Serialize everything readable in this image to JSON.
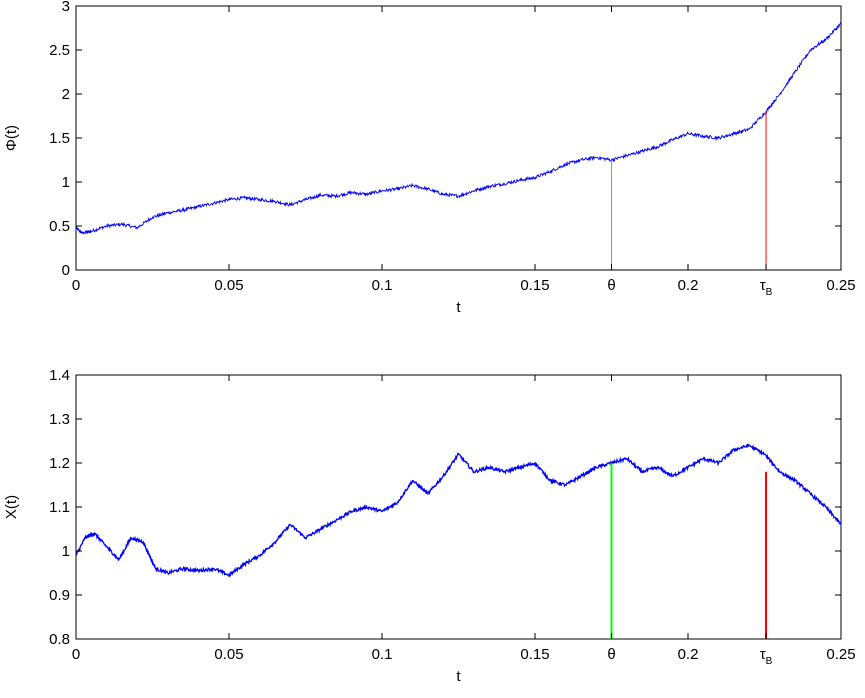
{
  "chart_data": [
    {
      "type": "line",
      "title": "",
      "xlabel": "t",
      "ylabel": "Φ(t)",
      "xlim": [
        0,
        0.25
      ],
      "ylim": [
        0,
        3
      ],
      "xticks": [
        0,
        0.05,
        0.1,
        0.15,
        0.2,
        0.25
      ],
      "xtick_labels": [
        "0",
        "0.05",
        "0.1",
        "0.15",
        "0.2",
        "0.25"
      ],
      "yticks": [
        0,
        0.5,
        1,
        1.5,
        2,
        2.5,
        3
      ],
      "ytick_labels": [
        "0",
        "0.5",
        "1",
        "1.5",
        "2",
        "2.5",
        "3"
      ],
      "special_xticks": [
        {
          "x": 0.175,
          "label": "θ"
        },
        {
          "x": 0.2255,
          "label": "τ",
          "subscript": "B"
        }
      ],
      "grid": false,
      "series": [
        {
          "color": "#0000ff",
          "x": [
            0,
            0.002,
            0.005,
            0.01,
            0.015,
            0.02,
            0.025,
            0.03,
            0.035,
            0.04,
            0.045,
            0.05,
            0.055,
            0.06,
            0.065,
            0.07,
            0.075,
            0.08,
            0.085,
            0.09,
            0.095,
            0.1,
            0.105,
            0.11,
            0.115,
            0.12,
            0.125,
            0.13,
            0.135,
            0.14,
            0.145,
            0.15,
            0.155,
            0.16,
            0.165,
            0.17,
            0.175,
            0.18,
            0.185,
            0.19,
            0.195,
            0.2,
            0.205,
            0.21,
            0.215,
            0.22,
            0.2255,
            0.23,
            0.235,
            0.24,
            0.245,
            0.25
          ],
          "y": [
            0.48,
            0.42,
            0.44,
            0.5,
            0.52,
            0.48,
            0.6,
            0.65,
            0.68,
            0.72,
            0.76,
            0.8,
            0.82,
            0.8,
            0.78,
            0.74,
            0.8,
            0.85,
            0.84,
            0.88,
            0.86,
            0.9,
            0.92,
            0.96,
            0.92,
            0.86,
            0.84,
            0.9,
            0.95,
            0.98,
            1.02,
            1.05,
            1.12,
            1.2,
            1.25,
            1.28,
            1.25,
            1.3,
            1.35,
            1.4,
            1.48,
            1.55,
            1.52,
            1.5,
            1.55,
            1.6,
            1.8,
            2.0,
            2.25,
            2.5,
            2.62,
            2.8
          ]
        }
      ],
      "markers": [
        {
          "x": 0.175,
          "y": 1.25,
          "color": "#00ff00"
        },
        {
          "x": 0.2255,
          "y": 1.8,
          "color": "#ff0000"
        }
      ]
    },
    {
      "type": "line",
      "title": "",
      "xlabel": "t",
      "ylabel": "X(t)",
      "xlim": [
        0,
        0.25
      ],
      "ylim": [
        0.8,
        1.4
      ],
      "xticks": [
        0,
        0.05,
        0.1,
        0.15,
        0.2,
        0.25
      ],
      "xtick_labels": [
        "0",
        "0.05",
        "0.1",
        "0.15",
        "0.2",
        "0.25"
      ],
      "yticks": [
        0.8,
        0.9,
        1.0,
        1.1,
        1.2,
        1.3,
        1.4
      ],
      "ytick_labels": [
        "0.8",
        "0.9",
        "1",
        "1.1",
        "1.2",
        "1.3",
        "1.4"
      ],
      "special_xticks": [
        {
          "x": 0.175,
          "label": "θ"
        },
        {
          "x": 0.2255,
          "label": "τ",
          "subscript": "B"
        }
      ],
      "grid": false,
      "series": [
        {
          "color": "#0000ff",
          "x": [
            0,
            0.003,
            0.006,
            0.01,
            0.014,
            0.018,
            0.022,
            0.026,
            0.03,
            0.035,
            0.04,
            0.045,
            0.05,
            0.055,
            0.06,
            0.065,
            0.07,
            0.075,
            0.08,
            0.085,
            0.09,
            0.095,
            0.1,
            0.105,
            0.11,
            0.115,
            0.12,
            0.125,
            0.13,
            0.135,
            0.14,
            0.145,
            0.15,
            0.155,
            0.16,
            0.165,
            0.17,
            0.175,
            0.18,
            0.185,
            0.19,
            0.195,
            0.2,
            0.205,
            0.21,
            0.215,
            0.22,
            0.225,
            0.23,
            0.235,
            0.24,
            0.245,
            0.25
          ],
          "y": [
            0.99,
            1.03,
            1.04,
            1.01,
            0.98,
            1.03,
            1.02,
            0.96,
            0.95,
            0.96,
            0.955,
            0.96,
            0.945,
            0.97,
            0.99,
            1.02,
            1.06,
            1.03,
            1.05,
            1.07,
            1.09,
            1.1,
            1.09,
            1.11,
            1.16,
            1.13,
            1.17,
            1.22,
            1.18,
            1.19,
            1.18,
            1.19,
            1.2,
            1.16,
            1.15,
            1.17,
            1.19,
            1.2,
            1.21,
            1.18,
            1.19,
            1.17,
            1.19,
            1.21,
            1.2,
            1.23,
            1.24,
            1.22,
            1.18,
            1.16,
            1.13,
            1.1,
            1.06
          ]
        }
      ],
      "markers": [
        {
          "x": 0.175,
          "y": 1.2,
          "color": "#00ff00"
        },
        {
          "x": 0.2255,
          "y": 1.18,
          "color": "#ff0000"
        }
      ]
    }
  ]
}
